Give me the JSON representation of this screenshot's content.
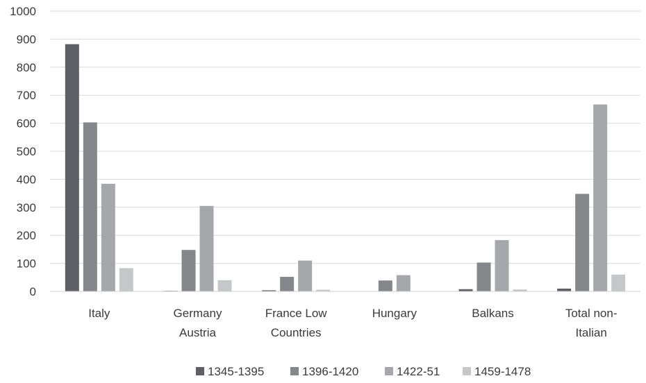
{
  "chart_data": {
    "type": "bar",
    "title": "",
    "xlabel": "",
    "ylabel": "",
    "ylim": [
      0,
      1000
    ],
    "yticks": [
      "0",
      "100",
      "200",
      "300",
      "400",
      "500",
      "600",
      "700",
      "800",
      "900",
      "1000"
    ],
    "grid": true,
    "legend_position": "bottom",
    "categories": [
      [
        "Italy"
      ],
      [
        "Germany",
        "Austria"
      ],
      [
        "France Low",
        "Countries"
      ],
      [
        "Hungary"
      ],
      [
        "Balkans"
      ],
      [
        "Total non-",
        "Italian"
      ]
    ],
    "series": [
      {
        "name": "1345-1395",
        "color": "#5f6065",
        "values": [
          882,
          2,
          4,
          0,
          8,
          10
        ]
      },
      {
        "name": "1396-1420",
        "color": "#86878a",
        "values": [
          603,
          148,
          52,
          39,
          103,
          348
        ]
      },
      {
        "name": "1422-51",
        "color": "#a6a7aa",
        "values": [
          384,
          305,
          110,
          58,
          183,
          667
        ]
      },
      {
        "name": "1459-1478",
        "color": "#c6c7c9",
        "values": [
          83,
          40,
          6,
          0,
          7,
          60
        ]
      }
    ]
  }
}
